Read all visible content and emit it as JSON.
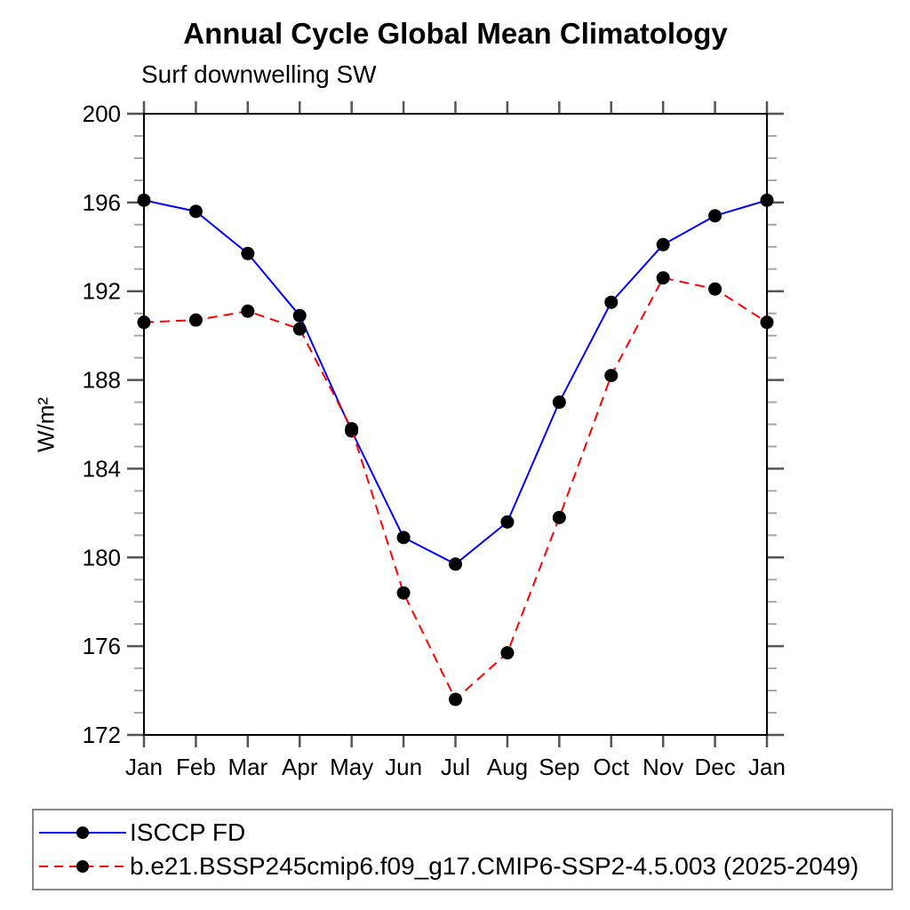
{
  "chart_data": {
    "type": "line",
    "title": "Annual Cycle Global Mean Climatology",
    "subtitle": "Surf downwelling SW",
    "ylabel": "W/m²",
    "xlabel": "",
    "categories": [
      "Jan",
      "Feb",
      "Mar",
      "Apr",
      "May",
      "Jun",
      "Jul",
      "Aug",
      "Sep",
      "Oct",
      "Nov",
      "Dec",
      "Jan"
    ],
    "ylim": [
      172,
      200
    ],
    "ytick_step": 4,
    "yminor_step": 1,
    "grid": false,
    "legend_position": "bottom-box",
    "axis_tick_color": "#555555",
    "series": [
      {
        "name": "ISCCP FD",
        "line_style": "solid",
        "line_color": "#0000ff",
        "marker": "filled-circle",
        "marker_color": "#000000",
        "values": [
          196.1,
          195.6,
          193.7,
          190.9,
          185.7,
          180.9,
          179.7,
          181.6,
          187.0,
          191.5,
          194.1,
          195.4,
          196.1
        ]
      },
      {
        "name": "b.e21.BSSP245cmip6.f09_g17.CMIP6-SSP2-4.5.003 (2025-2049)",
        "line_style": "dashed",
        "line_color": "#ff0000",
        "marker": "filled-circle",
        "marker_color": "#000000",
        "values": [
          190.6,
          190.7,
          191.1,
          190.3,
          185.8,
          178.4,
          173.6,
          175.7,
          181.8,
          188.2,
          192.6,
          192.1,
          190.6
        ]
      }
    ]
  }
}
